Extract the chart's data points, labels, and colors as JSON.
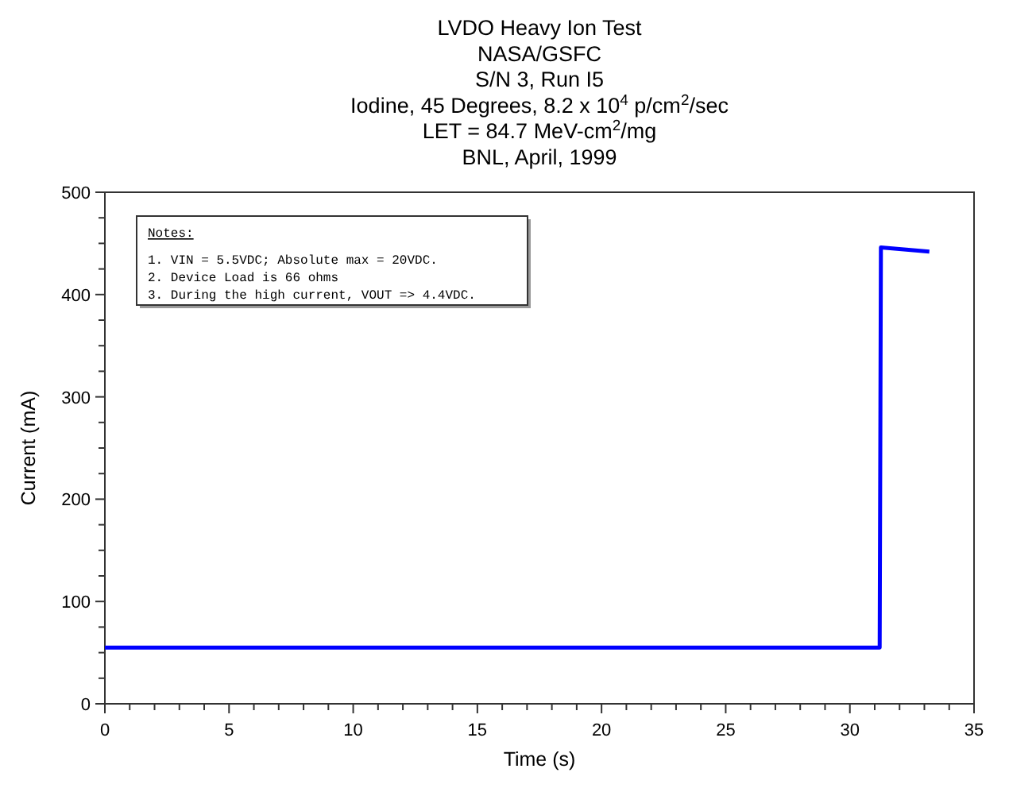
{
  "chart_data": {
    "type": "line",
    "title": "LVDO Heavy Ion Test\nNASA/GSFC\nS/N 3, Run I5\nIodine, 45 Degrees, 8.2 x 10$^{4}$ p/cm$^{2}$/sec\nLET = 84.7 MeV-cm$^{2}$/mg\nBNL, April, 1999",
    "xlabel": "Time (s)",
    "ylabel": "Current (mA)",
    "annotations": [
      "Notes:",
      "1. VIN = 5.5VDC; Absolute max = 20VDC.",
      "2. Device Load is 66 ohms",
      "3. During the high current, VOUT => 4.4VDC."
    ],
    "series": [
      {
        "color": "#0000ff",
        "x": [
          0,
          31.2,
          31.25,
          33.2
        ],
        "values": [
          55,
          55,
          446,
          442
        ]
      }
    ],
    "xlim": [
      0,
      35
    ],
    "ylim": [
      0,
      500
    ],
    "xticks": [
      0,
      {
        "value": 1,
        "label": null
      },
      {
        "value": 2,
        "label": null
      },
      {
        "value": 3,
        "label": null
      },
      {
        "value": 4,
        "label": null
      },
      5,
      {
        "value": 6,
        "label": null
      },
      {
        "value": 7,
        "label": null
      },
      {
        "value": 8,
        "label": null
      },
      {
        "value": 9,
        "label": null
      },
      10,
      {
        "value": 11,
        "label": null
      },
      {
        "value": 12,
        "label": null
      },
      {
        "value": 13,
        "label": null
      },
      {
        "value": 14,
        "label": null
      },
      15,
      {
        "value": 16,
        "label": null
      },
      {
        "value": 17,
        "label": null
      },
      {
        "value": 18,
        "label": null
      },
      {
        "value": 19,
        "label": null
      },
      20,
      {
        "value": 21,
        "label": null
      },
      {
        "value": 22,
        "label": null
      },
      {
        "value": 23,
        "label": null
      },
      {
        "value": 24,
        "label": null
      },
      25,
      {
        "value": 26,
        "label": null
      },
      {
        "value": 27,
        "label": null
      },
      {
        "value": 28,
        "label": null
      },
      {
        "value": 29,
        "label": null
      },
      30,
      {
        "value": 31,
        "label": null
      },
      {
        "value": 32,
        "label": null
      },
      {
        "value": 33,
        "label": null
      },
      {
        "value": 34,
        "label": null
      },
      35
    ],
    "yticks": [
      0,
      {
        "value": 25,
        "label": null
      },
      {
        "value": 50,
        "label": null
      },
      {
        "value": 75,
        "label": null
      },
      100,
      {
        "value": 125,
        "label": null
      },
      {
        "value": 150,
        "label": null
      },
      {
        "value": 175,
        "label": null
      },
      200,
      {
        "value": 225,
        "label": null
      },
      {
        "value": 250,
        "label": null
      },
      {
        "value": 275,
        "label": null
      },
      300,
      {
        "value": 325,
        "label": null
      },
      {
        "value": 350,
        "label": null
      },
      {
        "value": 375,
        "label": null
      },
      400,
      {
        "value": 425,
        "label": null
      },
      {
        "value": 450,
        "label": null
      },
      {
        "value": 475,
        "label": null
      },
      500
    ],
    "marker": "none",
    "line_style": "solid",
    "grid": false
  }
}
